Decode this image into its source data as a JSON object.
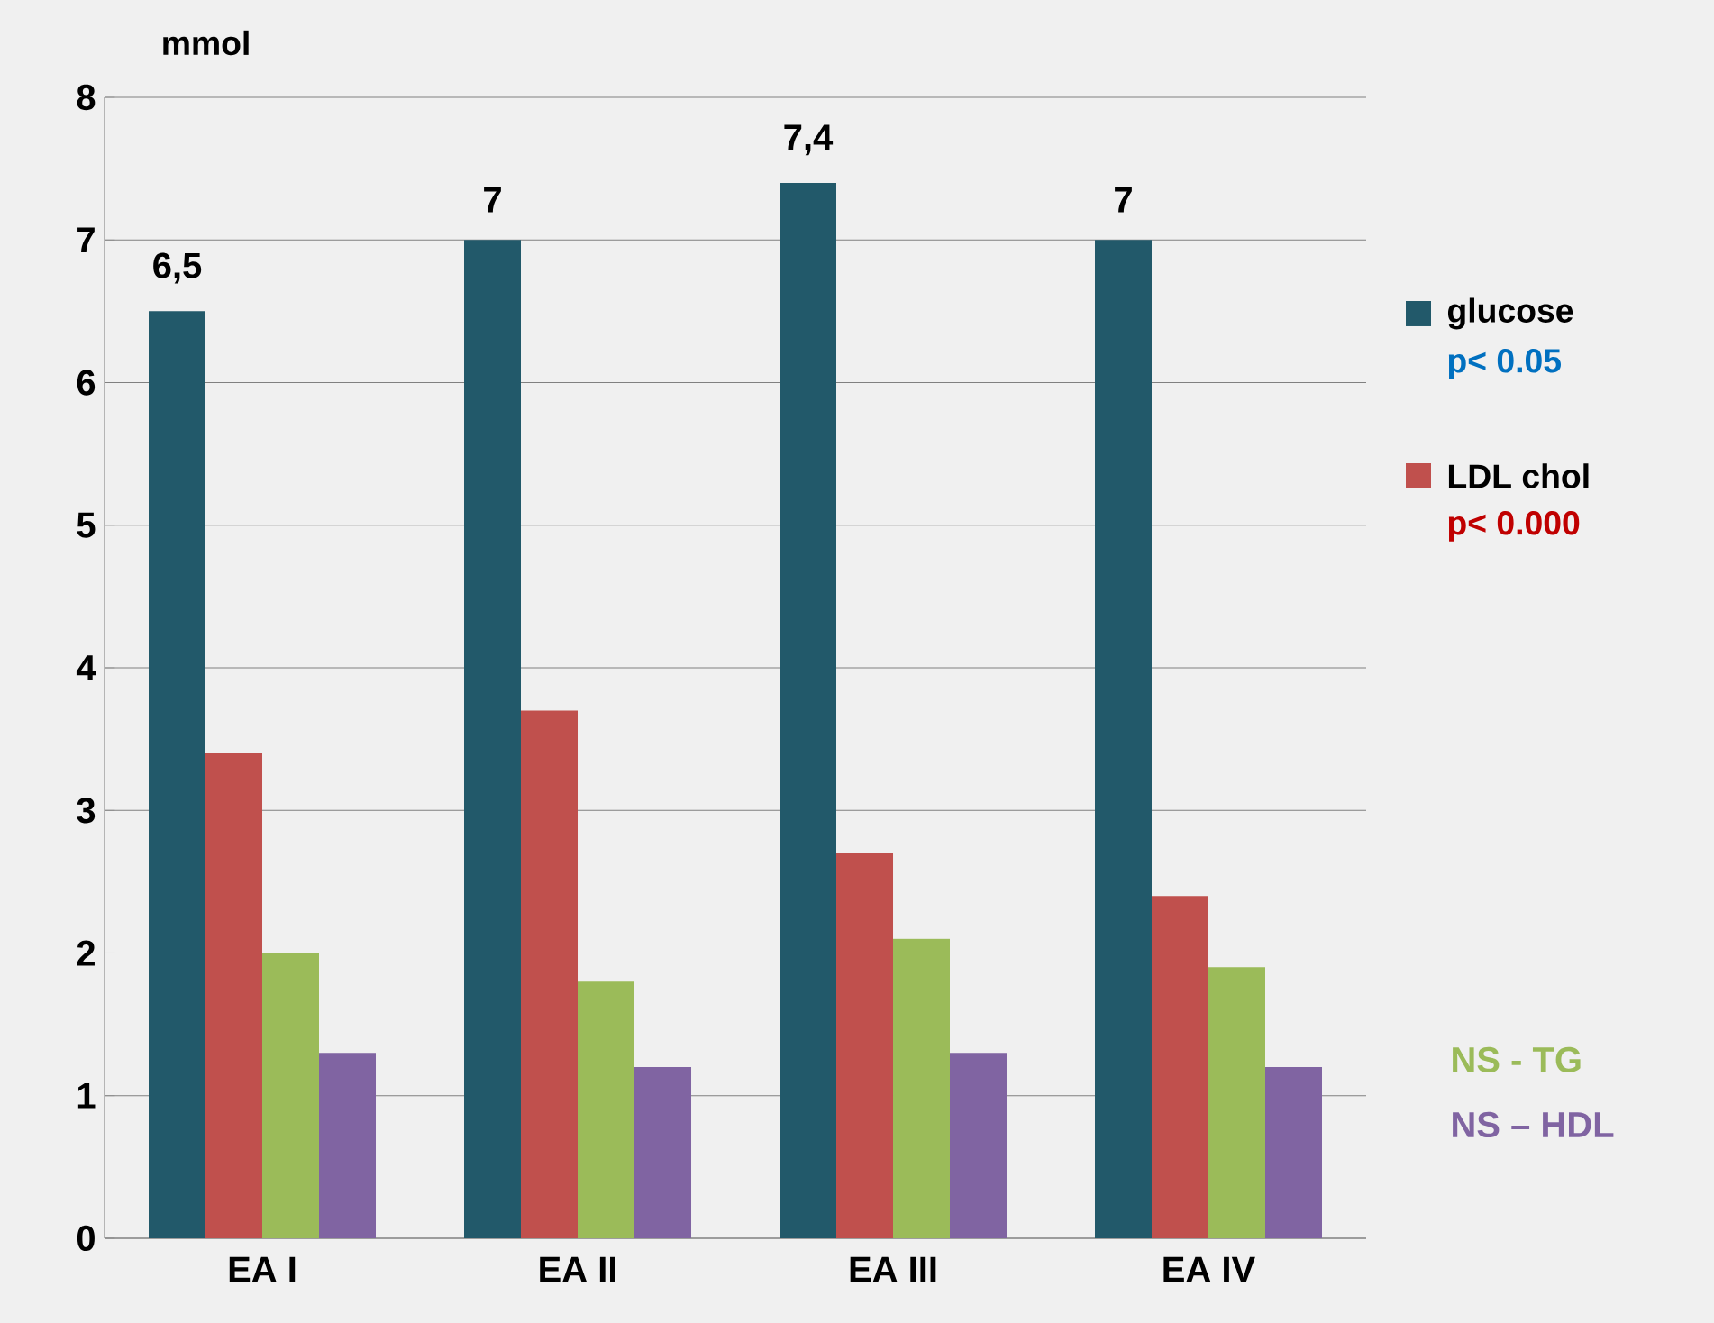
{
  "chart_data": {
    "type": "bar",
    "ylabel": "mmol",
    "categories": [
      "EA I",
      "EA II",
      "EA III",
      "EA IV"
    ],
    "series": [
      {
        "name": "glucose",
        "color": "#22596a",
        "values": [
          6.5,
          7,
          7.4,
          7
        ],
        "value_labels": [
          "6,5",
          "7",
          "7,4",
          "7"
        ]
      },
      {
        "name": "LDL chol",
        "color": "#c0504d",
        "values": [
          3.4,
          3.7,
          2.7,
          2.4
        ]
      },
      {
        "name": "NS - TG",
        "color": "#9bbb59",
        "values": [
          2.0,
          1.8,
          2.1,
          1.9
        ]
      },
      {
        "name": "NS – HDL",
        "color": "#8064a2",
        "values": [
          1.3,
          1.2,
          1.3,
          1.2
        ]
      }
    ],
    "ylim": [
      0,
      8
    ],
    "yticks": [
      0,
      1,
      2,
      3,
      4,
      5,
      6,
      7,
      8
    ],
    "grid": "y",
    "legend": "right",
    "annotations": [
      "p< 0.05",
      "p< 0.000"
    ]
  }
}
